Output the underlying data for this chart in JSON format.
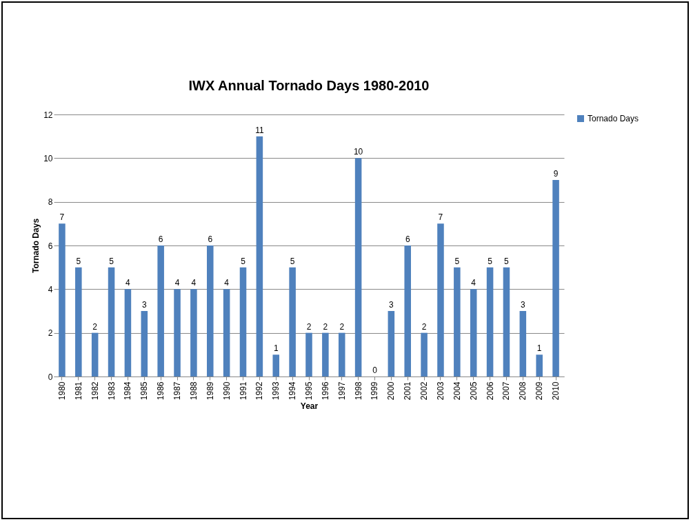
{
  "chart_data": {
    "type": "bar",
    "title": "IWX Annual Tornado Days 1980-2010",
    "xlabel": "Year",
    "ylabel": "Tornado Days",
    "categories": [
      "1980",
      "1981",
      "1982",
      "1983",
      "1984",
      "1985",
      "1986",
      "1987",
      "1988",
      "1989",
      "1990",
      "1991",
      "1992",
      "1993",
      "1994",
      "1995",
      "1996",
      "1997",
      "1998",
      "1999",
      "2000",
      "2001",
      "2002",
      "2003",
      "2004",
      "2005",
      "2006",
      "2007",
      "2008",
      "2009",
      "2010"
    ],
    "series": [
      {
        "name": "Tornado Days",
        "color": "#4f81bd",
        "values": [
          7,
          5,
          2,
          5,
          4,
          3,
          6,
          4,
          4,
          6,
          4,
          5,
          11,
          1,
          5,
          2,
          2,
          2,
          10,
          0,
          3,
          6,
          2,
          7,
          5,
          4,
          5,
          5,
          3,
          1,
          9
        ]
      }
    ],
    "ylim": [
      0,
      12
    ],
    "yticks": [
      0,
      2,
      4,
      6,
      8,
      10,
      12
    ],
    "grid": "y",
    "legend": "right",
    "data_labels": true
  }
}
